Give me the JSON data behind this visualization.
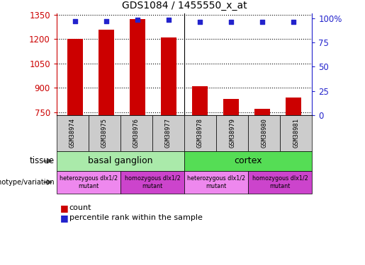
{
  "title": "GDS1084 / 1455550_x_at",
  "samples": [
    "GSM38974",
    "GSM38975",
    "GSM38976",
    "GSM38977",
    "GSM38978",
    "GSM38979",
    "GSM38980",
    "GSM38981"
  ],
  "counts": [
    1200,
    1260,
    1325,
    1210,
    910,
    830,
    770,
    840
  ],
  "percentile_ranks": [
    97,
    97,
    98,
    98,
    96,
    96,
    96,
    96
  ],
  "ylim_left": [
    730,
    1360
  ],
  "yticks_left": [
    750,
    900,
    1050,
    1200,
    1350
  ],
  "ylim_right": [
    0,
    105
  ],
  "yticks_right": [
    0,
    25,
    50,
    75,
    100
  ],
  "bar_color": "#cc0000",
  "dot_color": "#2222cc",
  "tissue_groups": [
    {
      "label": "basal ganglion",
      "start": 0,
      "end": 3,
      "color": "#aaeaaa"
    },
    {
      "label": "cortex",
      "start": 4,
      "end": 7,
      "color": "#55dd55"
    }
  ],
  "genotype_groups": [
    {
      "label": "heterozygous dlx1/2\nmutant",
      "start": 0,
      "end": 1,
      "color": "#ee88ee"
    },
    {
      "label": "homozygous dlx1/2\nmutant",
      "start": 2,
      "end": 3,
      "color": "#cc44cc"
    },
    {
      "label": "heterozygous dlx1/2\nmutant",
      "start": 4,
      "end": 5,
      "color": "#ee88ee"
    },
    {
      "label": "homozygous dlx1/2\nmutant",
      "start": 6,
      "end": 7,
      "color": "#cc44cc"
    }
  ],
  "tissue_label": "tissue",
  "genotype_label": "genotype/variation",
  "legend_count_label": "count",
  "legend_percentile_label": "percentile rank within the sample",
  "left_axis_color": "#cc0000",
  "right_axis_color": "#2222cc",
  "sample_box_color": "#cccccc",
  "bar_width": 0.5
}
